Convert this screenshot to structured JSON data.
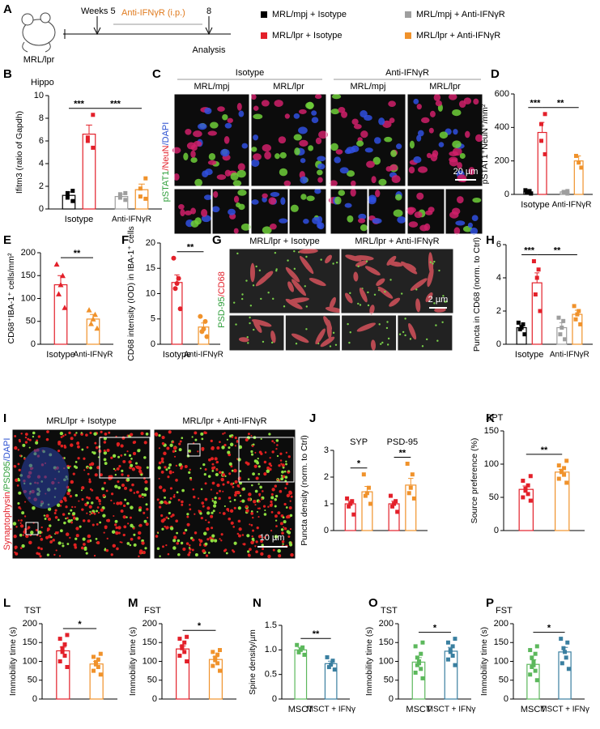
{
  "schematic": {
    "panel": "A",
    "strain": "MRL/lpr",
    "weeks_label": "Weeks 5",
    "end_week": "8",
    "treatment": "Anti-IFNγR (i.p.)",
    "endpoint": "Analysis"
  },
  "legend": [
    {
      "name": "MRL/mpj + Isotype",
      "color": "#000000"
    },
    {
      "name": "MRL/mpj + Anti-IFNγR",
      "color": "#9e9e9e"
    },
    {
      "name": "MRL/lpr + Isotype",
      "color": "#e3202a"
    },
    {
      "name": "MRL/lpr + Anti-IFNγR",
      "color": "#f0922b"
    }
  ],
  "images": [
    {
      "panel": "C",
      "headers": [
        "Isotype",
        "Anti-IFNγR"
      ],
      "subheaders": [
        "MRL/mpj",
        "MRL/lpr",
        "MRL/mpj",
        "MRL/lpr"
      ],
      "side_label": [
        {
          "text": "pSTAT1",
          "color": "#2e9e3a"
        },
        {
          "text": "/NeuN",
          "color": "#e3202a"
        },
        {
          "text": "/DAPI",
          "color": "#2a4fd0"
        }
      ],
      "scale_bar": "20 µm"
    },
    {
      "panel": "G",
      "headers": [
        "MRL/lpr + Isotype",
        "MRL/lpr + Anti-IFNγR"
      ],
      "side_label": [
        {
          "text": "PSD-95",
          "color": "#2e9e3a"
        },
        {
          "text": "/CD68",
          "color": "#e3202a"
        }
      ],
      "scale_bar": "2 µm"
    },
    {
      "panel": "I",
      "headers": [
        "MRL/lpr + Isotype",
        "MRL/lpr + Anti-IFNγR"
      ],
      "side_label": [
        {
          "text": "Synaptophysin",
          "color": "#e3202a"
        },
        {
          "text": "/PSD95",
          "color": "#2e9e3a"
        },
        {
          "text": "/DAPI",
          "color": "#2a4fd0"
        }
      ],
      "scale_bar": "10 µm"
    }
  ],
  "chart_data": [
    {
      "type": "bar",
      "panel": "B",
      "title": "Hippo",
      "ylabel": "Ifitm3 (ratio of Gapdh)",
      "ylim": [
        0,
        10
      ],
      "yticks": [
        0,
        2,
        4,
        6,
        8,
        10
      ],
      "marker": "square",
      "groups": [
        {
          "label": "Isotype",
          "bars": [
            {
              "color": "#000000",
              "value": 1.2,
              "error": 0.3,
              "points": [
                0.7,
                1.0,
                1.4,
                1.6
              ]
            },
            {
              "color": "#e3202a",
              "value": 6.6,
              "error": 0.8,
              "points": [
                5.4,
                6.0,
                6.3,
                8.3
              ]
            }
          ]
        },
        {
          "label": "Anti-IFNγR",
          "bars": [
            {
              "color": "#9e9e9e",
              "value": 1.1,
              "error": 0.2,
              "points": [
                0.8,
                1.0,
                1.3,
                1.4
              ]
            },
            {
              "color": "#f0922b",
              "value": 1.7,
              "error": 0.5,
              "points": [
                0.9,
                1.1,
                1.8,
                2.7
              ]
            }
          ]
        }
      ],
      "significance": [
        {
          "label": "***",
          "from": 0,
          "to": 1
        },
        {
          "label": "***",
          "from": 1,
          "to": 3
        }
      ]
    },
    {
      "type": "bar",
      "panel": "D",
      "ylabel": "pSTAT1⁺NeuN⁺/mm²",
      "ylim": [
        0,
        600
      ],
      "yticks": [
        0,
        200,
        400,
        600
      ],
      "marker": "square",
      "groups": [
        {
          "label": "Isotype",
          "bars": [
            {
              "color": "#000000",
              "value": 15,
              "error": 5,
              "points": [
                5,
                10,
                15,
                20,
                25
              ]
            },
            {
              "color": "#e3202a",
              "value": 370,
              "error": 60,
              "points": [
                240,
                320,
                420,
                480
              ]
            }
          ]
        },
        {
          "label": "Anti-IFNγR",
          "bars": [
            {
              "color": "#9e9e9e",
              "value": 15,
              "error": 5,
              "points": [
                5,
                10,
                15,
                20
              ]
            },
            {
              "color": "#f0922b",
              "value": 200,
              "error": 30,
              "points": [
                160,
                190,
                230
              ]
            }
          ]
        }
      ],
      "significance": [
        {
          "label": "***",
          "from": 0,
          "to": 1
        },
        {
          "label": "**",
          "from": 1,
          "to": 3
        }
      ]
    },
    {
      "type": "bar",
      "panel": "E",
      "ylabel": "CD68⁺IBA-1⁺ cells/mm²",
      "ylim": [
        0,
        200
      ],
      "yticks": [
        0,
        50,
        100,
        150,
        200
      ],
      "marker": "triangle",
      "groups": [
        {
          "label": "Isotype",
          "bars": [
            {
              "color": "#e3202a",
              "value": 130,
              "error": 20,
              "points": [
                80,
                110,
                130,
                150,
                175
              ]
            }
          ]
        },
        {
          "label": "Anti-IFNγR",
          "bars": [
            {
              "color": "#f0922b",
              "value": 55,
              "error": 10,
              "points": [
                35,
                45,
                55,
                65,
                75
              ]
            }
          ]
        }
      ],
      "significance": [
        {
          "label": "**",
          "from": 0,
          "to": 1
        }
      ]
    },
    {
      "type": "bar",
      "panel": "F",
      "ylabel": "CD68 intensity (IOD) in IBA-1⁺ cells",
      "ylim": [
        0,
        20
      ],
      "yticks": [
        0,
        5,
        10,
        15,
        20
      ],
      "marker": "circle",
      "groups": [
        {
          "label": "Isotype",
          "bars": [
            {
              "color": "#e3202a",
              "value": 12.2,
              "error": 1.5,
              "points": [
                7,
                11,
                12,
                13,
                17
              ]
            }
          ]
        },
        {
          "label": "Anti-IFNγR",
          "bars": [
            {
              "color": "#f0922b",
              "value": 3.4,
              "error": 0.8,
              "points": [
                1.5,
                2.5,
                3,
                4.5,
                5.5
              ]
            }
          ]
        }
      ],
      "significance": [
        {
          "label": "**",
          "from": 0,
          "to": 1
        }
      ]
    },
    {
      "type": "bar",
      "panel": "H",
      "ylabel": "Puncta in CD68 (norm. to Ctrl)",
      "ylim": [
        0,
        6
      ],
      "yticks": [
        0,
        2,
        4,
        6
      ],
      "marker": "square",
      "groups": [
        {
          "label": "Isotype",
          "bars": [
            {
              "color": "#000000",
              "value": 1.0,
              "error": 0.15,
              "points": [
                0.6,
                0.9,
                1.0,
                1.2,
                1.3
              ]
            },
            {
              "color": "#e3202a",
              "value": 3.7,
              "error": 0.6,
              "points": [
                2.0,
                3.0,
                4.0,
                4.5,
                5.0
              ]
            }
          ]
        },
        {
          "label": "Anti-IFNγR",
          "bars": [
            {
              "color": "#9e9e9e",
              "value": 1.0,
              "error": 0.3,
              "points": [
                0.3,
                0.6,
                1.0,
                1.4,
                1.6
              ]
            },
            {
              "color": "#f0922b",
              "value": 1.8,
              "error": 0.25,
              "points": [
                1.2,
                1.5,
                1.8,
                2.0,
                2.3
              ]
            }
          ]
        }
      ],
      "significance": [
        {
          "label": "***",
          "from": 0,
          "to": 1
        },
        {
          "label": "**",
          "from": 1,
          "to": 3
        }
      ]
    },
    {
      "type": "bar",
      "panel": "J",
      "ylabel": "Puncta density (norm. to Ctrl)",
      "ylim": [
        0,
        3
      ],
      "yticks": [
        0,
        1,
        2,
        3
      ],
      "marker": "square",
      "group_label_position": "top",
      "groups": [
        {
          "label": "SYP",
          "bars": [
            {
              "color": "#e3202a",
              "value": 1.0,
              "error": 0.1,
              "points": [
                0.6,
                0.9,
                1.0,
                1.1,
                1.2
              ]
            },
            {
              "color": "#f0922b",
              "value": 1.45,
              "error": 0.2,
              "points": [
                1.0,
                1.3,
                1.4,
                1.6,
                2.1
              ]
            }
          ]
        },
        {
          "label": "PSD-95",
          "bars": [
            {
              "color": "#e3202a",
              "value": 1.0,
              "error": 0.1,
              "points": [
                0.7,
                0.9,
                1.0,
                1.1,
                1.3
              ]
            },
            {
              "color": "#f0922b",
              "value": 1.7,
              "error": 0.25,
              "points": [
                1.2,
                1.4,
                1.6,
                2.1,
                2.5
              ]
            }
          ]
        }
      ],
      "significance": [
        {
          "label": "*",
          "from": 0,
          "to": 1
        },
        {
          "label": "**",
          "from": 2,
          "to": 3
        }
      ]
    },
    {
      "type": "bar",
      "panel": "K",
      "title": "SPT",
      "ylabel": "Source preference (%)",
      "ylim": [
        0,
        150
      ],
      "yticks": [
        0,
        50,
        100,
        150
      ],
      "marker": "square",
      "groups": [
        {
          "bars": [
            {
              "color": "#e3202a",
              "value": 62,
              "error": 5,
              "points": [
                45,
                50,
                55,
                60,
                63,
                68,
                75,
                82
              ]
            }
          ]
        },
        {
          "bars": [
            {
              "color": "#f0922b",
              "value": 88,
              "error": 4,
              "points": [
                72,
                78,
                84,
                88,
                90,
                94,
                98,
                105
              ]
            }
          ]
        }
      ],
      "significance": [
        {
          "label": "**",
          "from": 0,
          "to": 1
        }
      ]
    },
    {
      "type": "bar",
      "panel": "L",
      "title": "TST",
      "ylabel": "Immobility time (s)",
      "ylim": [
        0,
        200
      ],
      "yticks": [
        0,
        50,
        100,
        150,
        200
      ],
      "marker": "square",
      "groups": [
        {
          "bars": [
            {
              "color": "#e3202a",
              "value": 128,
              "error": 10,
              "points": [
                85,
                100,
                115,
                125,
                135,
                145,
                160,
                170
              ]
            }
          ]
        },
        {
          "bars": [
            {
              "color": "#f0922b",
              "value": 93,
              "error": 7,
              "points": [
                65,
                75,
                85,
                92,
                98,
                105,
                112,
                120
              ]
            }
          ]
        }
      ],
      "significance": [
        {
          "label": "*",
          "from": 0,
          "to": 1
        }
      ]
    },
    {
      "type": "bar",
      "panel": "M",
      "title": "FST",
      "ylabel": "Immobility time (s)",
      "ylim": [
        0,
        200
      ],
      "yticks": [
        0,
        50,
        100,
        150,
        200
      ],
      "marker": "square",
      "groups": [
        {
          "bars": [
            {
              "color": "#e3202a",
              "value": 133,
              "error": 8,
              "points": [
                100,
                115,
                125,
                135,
                140,
                150,
                160,
                165
              ]
            }
          ]
        },
        {
          "bars": [
            {
              "color": "#f0922b",
              "value": 105,
              "error": 7,
              "points": [
                75,
                88,
                95,
                103,
                110,
                118,
                125,
                130
              ]
            }
          ]
        }
      ],
      "significance": [
        {
          "label": "*",
          "from": 0,
          "to": 1
        }
      ]
    },
    {
      "type": "bar",
      "panel": "N",
      "ylabel": "Spine density/µm",
      "ylim": [
        0,
        1.5
      ],
      "yticks": [
        0,
        0.5,
        {
          "value": 1,
          "label": "1.0"
        },
        1.5
      ],
      "marker": "square",
      "groups": [
        {
          "label": "MSCT",
          "bars": [
            {
              "color": "#5cb85c",
              "value": 1.0,
              "error": 0.05,
              "points": [
                0.9,
                0.95,
                1.0,
                1.05,
                1.1
              ]
            }
          ]
        },
        {
          "label": "MSCT + IFNγ",
          "bars": [
            {
              "color": "#3a7fa0",
              "value": 0.72,
              "error": 0.05,
              "points": [
                0.6,
                0.65,
                0.7,
                0.78,
                0.85
              ]
            }
          ]
        }
      ],
      "significance": [
        {
          "label": "**",
          "from": 0,
          "to": 1
        }
      ]
    },
    {
      "type": "bar",
      "panel": "O",
      "title": "TST",
      "ylabel": "Immobility time (s)",
      "ylim": [
        0,
        200
      ],
      "yticks": [
        0,
        50,
        100,
        150,
        200
      ],
      "marker": "square",
      "groups": [
        {
          "label": "MSCT",
          "bars": [
            {
              "color": "#5cb85c",
              "value": 98,
              "error": 12,
              "points": [
                55,
                70,
                80,
                90,
                95,
                100,
                110,
                120,
                140,
                150
              ]
            }
          ]
        },
        {
          "label": "MSCT + IFNγ",
          "bars": [
            {
              "color": "#3a7fa0",
              "value": 127,
              "error": 10,
              "points": [
                90,
                105,
                115,
                125,
                130,
                140,
                150,
                160
              ]
            }
          ]
        }
      ],
      "significance": [
        {
          "label": "*",
          "from": 0,
          "to": 1
        }
      ]
    },
    {
      "type": "bar",
      "panel": "P",
      "title": "FST",
      "ylabel": "Immobility time (s)",
      "ylim": [
        0,
        200
      ],
      "yticks": [
        0,
        50,
        100,
        150,
        200
      ],
      "marker": "square",
      "groups": [
        {
          "label": "MSCT",
          "bars": [
            {
              "color": "#5cb85c",
              "value": 92,
              "error": 12,
              "points": [
                50,
                65,
                75,
                85,
                90,
                100,
                110,
                120,
                130,
                140
              ]
            }
          ]
        },
        {
          "label": "MSCT + IFNγ",
          "bars": [
            {
              "color": "#3a7fa0",
              "value": 125,
              "error": 12,
              "points": [
                80,
                95,
                110,
                125,
                135,
                150,
                160
              ]
            }
          ]
        }
      ],
      "significance": [
        {
          "label": "*",
          "from": 0,
          "to": 1
        }
      ]
    }
  ]
}
